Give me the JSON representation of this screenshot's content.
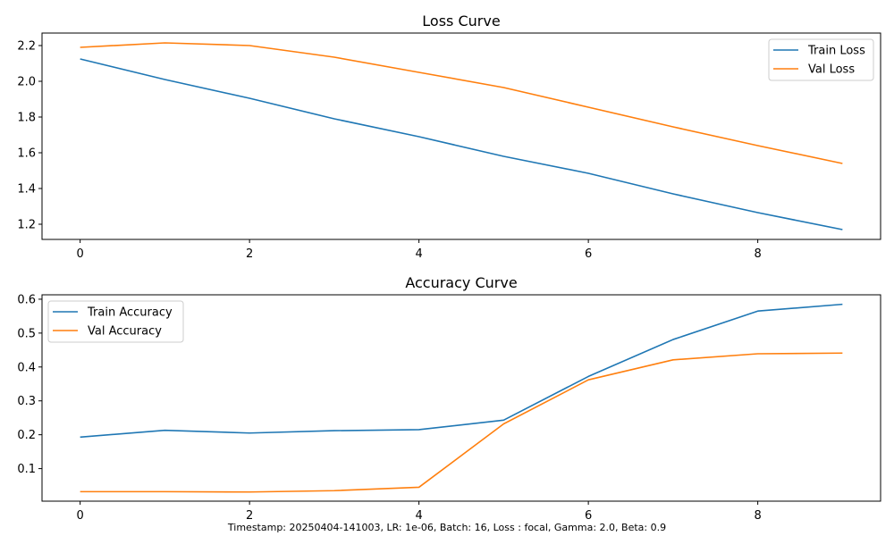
{
  "chart_data": [
    {
      "type": "line",
      "title": "Loss Curve",
      "xlabel": "",
      "ylabel": "",
      "x": [
        0,
        1,
        2,
        3,
        4,
        5,
        6,
        7,
        8,
        9
      ],
      "xlim": [
        -0.45,
        9.45
      ],
      "ylim": [
        1.115,
        2.27
      ],
      "xticks": [
        0,
        2,
        4,
        6,
        8
      ],
      "yticks": [
        1.2,
        1.4,
        1.6,
        1.8,
        2.0,
        2.2
      ],
      "grid": false,
      "legend_position": "top-right",
      "series": [
        {
          "name": "Train Loss",
          "color": "#1f77b4",
          "values": [
            2.125,
            2.01,
            1.905,
            1.79,
            1.69,
            1.58,
            1.485,
            1.37,
            1.265,
            1.17
          ]
        },
        {
          "name": "Val Loss",
          "color": "#ff7f0e",
          "values": [
            2.19,
            2.215,
            2.2,
            2.135,
            2.05,
            1.965,
            1.855,
            1.745,
            1.64,
            1.54
          ]
        }
      ]
    },
    {
      "type": "line",
      "title": "Accuracy Curve",
      "xlabel": "",
      "ylabel": "",
      "x": [
        0,
        1,
        2,
        3,
        4,
        5,
        6,
        7,
        8,
        9
      ],
      "xlim": [
        -0.45,
        9.45
      ],
      "ylim": [
        0.004,
        0.613
      ],
      "xticks": [
        0,
        2,
        4,
        6,
        8
      ],
      "yticks": [
        0.1,
        0.2,
        0.3,
        0.4,
        0.5,
        0.6
      ],
      "grid": false,
      "legend_position": "top-left",
      "series": [
        {
          "name": "Train Accuracy",
          "color": "#1f77b4",
          "values": [
            0.193,
            0.213,
            0.205,
            0.212,
            0.215,
            0.243,
            0.372,
            0.481,
            0.565,
            0.585
          ]
        },
        {
          "name": "Val Accuracy",
          "color": "#ff7f0e",
          "values": [
            0.032,
            0.032,
            0.031,
            0.035,
            0.045,
            0.232,
            0.362,
            0.421,
            0.439,
            0.441
          ]
        }
      ]
    }
  ],
  "footer": "Timestamp: 20250404-141003, LR: 1e-06, Batch: 16, Loss : focal, Gamma: 2.0, Beta: 0.9"
}
